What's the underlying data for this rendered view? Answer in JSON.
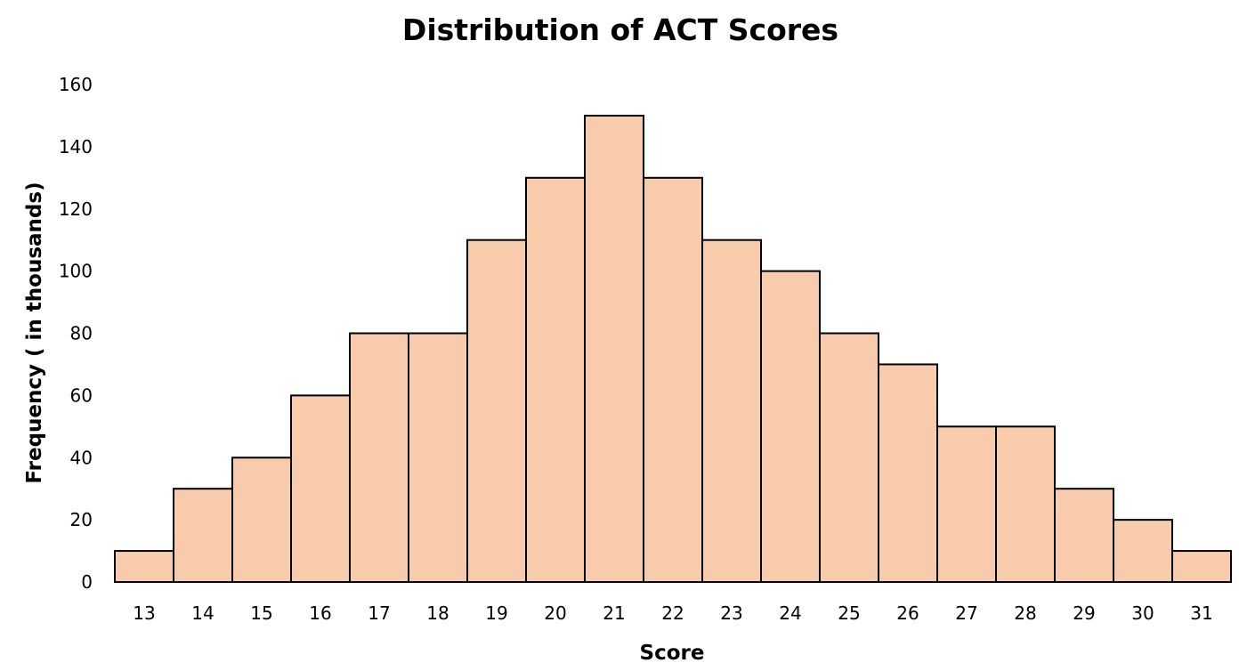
{
  "colors": {
    "bar_fill": "#F8CBAD",
    "bar_stroke": "#000000",
    "text": "#000000",
    "background": "#FFFFFF"
  },
  "chart_data": {
    "type": "bar",
    "title": "Distribution of ACT Scores",
    "xlabel": "Score",
    "ylabel": "Frequency ( in thousands)",
    "categories": [
      "13",
      "14",
      "15",
      "16",
      "17",
      "18",
      "19",
      "20",
      "21",
      "22",
      "23",
      "24",
      "25",
      "26",
      "27",
      "28",
      "29",
      "30",
      "31"
    ],
    "values": [
      10,
      30,
      40,
      60,
      80,
      80,
      110,
      130,
      150,
      130,
      110,
      100,
      80,
      70,
      50,
      50,
      30,
      20,
      10
    ],
    "yticks": [
      "0",
      "20",
      "40",
      "60",
      "80",
      "100",
      "120",
      "140",
      "160"
    ],
    "ylim": [
      0,
      160
    ],
    "grid": false,
    "legend": "none"
  }
}
